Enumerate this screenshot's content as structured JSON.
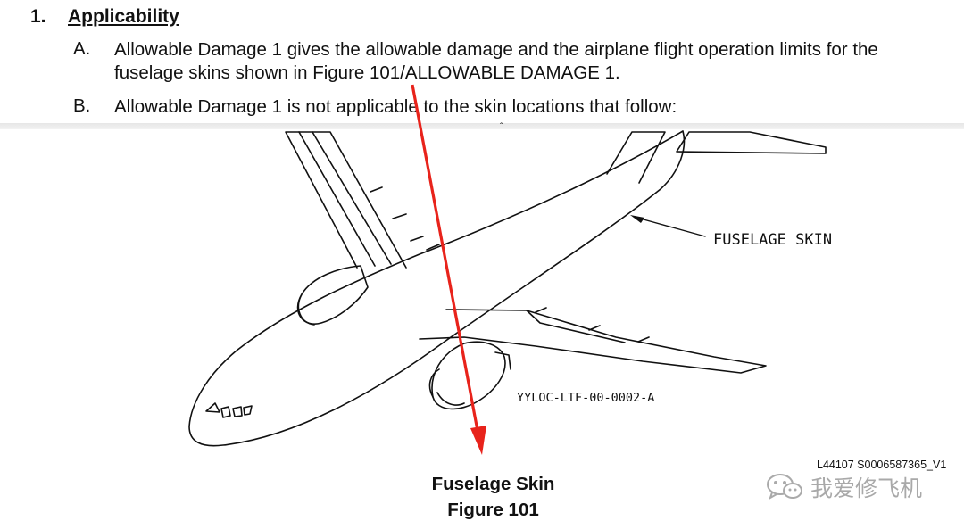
{
  "section": {
    "number": "1.",
    "title": "Applicability"
  },
  "paragraphs": [
    {
      "letter": "A.",
      "line1": "Allowable Damage 1 gives the allowable damage and the airplane flight operation limits for the",
      "line2": "fuselage skins shown in Figure 101/ALLOWABLE DAMAGE 1."
    },
    {
      "letter": "B.",
      "line1": "Allowable Damage 1 is not applicable to the skin locations that follow:"
    }
  ],
  "figure": {
    "callout": "FUSELAGE SKIN",
    "drawing_code": "YYLOC-LTF-00-0002-A",
    "caption_title": "Fuselage Skin",
    "caption_figure": "Figure 101",
    "reference_code": "L44107 S0006587365_V1",
    "arrow_color": "#e8231b",
    "line_color": "#111111"
  },
  "watermark": {
    "text": "我爱修飞机",
    "icon": "wechat-icon"
  }
}
